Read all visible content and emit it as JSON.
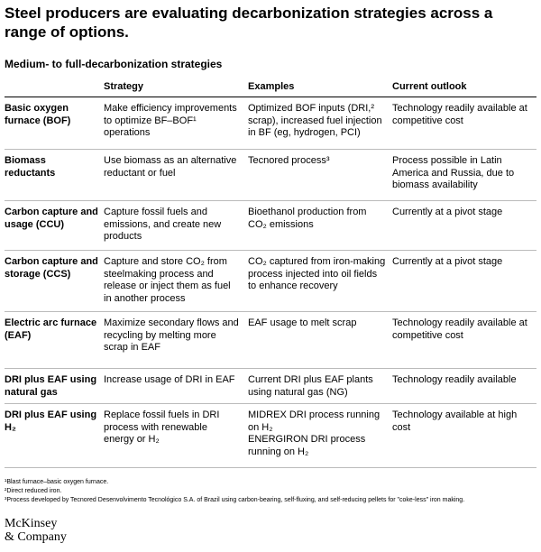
{
  "header": {
    "title": "Steel producers are evaluating decarbonization strategies across a range of options.",
    "subtitle": "Medium- to full-decarbonization strategies"
  },
  "table": {
    "columns": [
      "",
      "Strategy",
      "Examples",
      "Current outlook"
    ],
    "rows": [
      [
        "Basic oxygen furnace (BOF)",
        "Make efficiency improvements to optimize BF–BOF¹ operations",
        "Optimized BOF inputs (DRI,² scrap), increased fuel injection in BF (eg, hydrogen, PCI)",
        "Technology readily available at competitive cost"
      ],
      [
        "Biomass reductants",
        "Use biomass as an alternative reductant or fuel",
        "Tecnored process³",
        "Process possible in Latin America and Russia, due to biomass availability"
      ],
      [
        "Carbon capture and usage (CCU)",
        "Capture fossil fuels and emissions, and create new products",
        "Bioethanol production from CO₂ emissions",
        "Currently at a pivot stage"
      ],
      [
        "Carbon capture and storage (CCS)",
        "Capture and store CO₂ from steelmaking process and release or inject them as fuel in another process",
        "CO₂ captured from iron-making process injected into oil fields to enhance recovery",
        "Currently at a pivot stage"
      ],
      [
        "Electric arc furnace (EAF)",
        "Maximize secondary flows and recycling by melting more scrap in EAF",
        "EAF usage to melt scrap",
        "Technology readily available at competitive cost"
      ],
      [
        "DRI plus EAF using natural gas",
        "Increase usage of DRI in EAF",
        "Current DRI plus EAF plants using natural gas (NG)",
        "Technology readily available"
      ],
      [
        "DRI plus EAF using H₂",
        "Replace fossil fuels in DRI process with renewable energy or H₂",
        [
          "MIDREX DRI process running on H₂",
          "ENERGIRON DRI process running on H₂"
        ],
        "Technology available at high cost"
      ]
    ]
  },
  "footnotes": [
    "¹Blast furnace–basic oxygen furnace.",
    "²Direct reduced iron.",
    "³Process developed by Tecnored Desenvolvimento Tecnológico S.A. of Brazil using carbon-bearing, self-fluxing, and self-reducing pellets for \"coke-less\" iron making."
  ],
  "logo": [
    "McKinsey",
    "& Company"
  ]
}
